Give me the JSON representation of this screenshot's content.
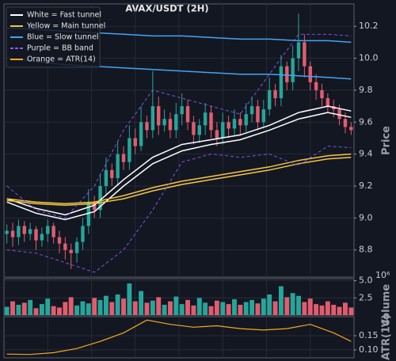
{
  "chart_data": [
    {
      "type": "candlestick",
      "title": "AVAX/USDT (2H)",
      "ylabel": "Price",
      "up_color": "#26a69a",
      "down_color": "#e05d6f",
      "grid": true,
      "xlim": [
        -0.5,
        59.5
      ],
      "ylim": [
        8.63,
        10.34
      ],
      "yticks": [
        8.8,
        {
          "value": 9,
          "label": "9.0"
        },
        9.2,
        9.4,
        9.6,
        9.8,
        {
          "value": 10,
          "label": "10.0"
        },
        10.2
      ],
      "open": [
        8.9,
        8.92,
        8.88,
        8.95,
        8.9,
        8.93,
        8.86,
        8.9,
        8.95,
        8.88,
        8.84,
        8.8,
        8.78,
        8.85,
        8.95,
        9.1,
        9.05,
        9.2,
        9.3,
        9.25,
        9.4,
        9.35,
        9.5,
        9.45,
        9.6,
        9.55,
        9.7,
        9.58,
        9.62,
        9.55,
        9.65,
        9.7,
        9.6,
        9.52,
        9.58,
        9.66,
        9.55,
        9.5,
        9.6,
        9.56,
        9.62,
        9.58,
        9.65,
        9.7,
        9.6,
        9.68,
        9.8,
        9.75,
        9.95,
        9.85,
        10.0,
        10.1,
        9.95,
        9.85,
        9.8,
        9.75,
        9.7,
        9.68,
        9.62,
        9.57
      ],
      "high": [
        8.96,
        8.97,
        8.99,
        8.98,
        8.97,
        8.95,
        8.94,
        8.99,
        8.97,
        8.92,
        8.88,
        8.84,
        8.88,
        9.0,
        9.18,
        9.14,
        9.28,
        9.38,
        9.34,
        9.48,
        9.45,
        9.58,
        9.56,
        9.7,
        9.64,
        9.92,
        9.76,
        9.68,
        9.66,
        9.72,
        9.78,
        9.74,
        9.64,
        9.62,
        9.72,
        9.7,
        9.6,
        9.66,
        9.64,
        9.68,
        9.66,
        9.72,
        9.76,
        9.74,
        9.74,
        9.88,
        9.84,
        10.02,
        9.98,
        10.08,
        10.28,
        10.15,
        9.98,
        9.9,
        9.84,
        9.78,
        9.74,
        9.71,
        9.66,
        9.6
      ],
      "low": [
        8.84,
        8.82,
        8.83,
        8.85,
        8.86,
        8.8,
        8.82,
        8.85,
        8.84,
        8.78,
        8.74,
        8.68,
        8.72,
        8.8,
        8.9,
        9.0,
        9.0,
        9.14,
        9.2,
        9.2,
        9.3,
        9.3,
        9.4,
        9.42,
        9.5,
        9.5,
        9.52,
        9.54,
        9.5,
        9.5,
        9.58,
        9.55,
        9.46,
        9.47,
        9.52,
        9.5,
        9.45,
        9.46,
        9.5,
        9.52,
        9.52,
        9.54,
        9.6,
        9.55,
        9.56,
        9.64,
        9.7,
        9.7,
        9.8,
        9.8,
        9.92,
        9.88,
        9.8,
        9.74,
        9.7,
        9.66,
        9.63,
        9.58,
        9.53,
        9.52
      ],
      "close": [
        8.92,
        8.88,
        8.95,
        8.9,
        8.93,
        8.86,
        8.9,
        8.95,
        8.88,
        8.84,
        8.8,
        8.78,
        8.85,
        8.95,
        9.1,
        9.05,
        9.2,
        9.3,
        9.25,
        9.4,
        9.35,
        9.5,
        9.45,
        9.6,
        9.55,
        9.7,
        9.58,
        9.62,
        9.55,
        9.65,
        9.7,
        9.6,
        9.52,
        9.58,
        9.66,
        9.55,
        9.5,
        9.6,
        9.56,
        9.62,
        9.58,
        9.65,
        9.7,
        9.6,
        9.68,
        9.8,
        9.75,
        9.95,
        9.85,
        10.0,
        10.1,
        9.95,
        9.85,
        9.8,
        9.75,
        9.7,
        9.68,
        9.62,
        9.57,
        9.55
      ],
      "legend": "upper left",
      "series": [
        {
          "name": "White = Fast tunnel",
          "color": "#ffffff",
          "lines": [
            {
              "x": [
                0,
                5,
                10,
                15,
                20,
                25,
                30,
                35,
                40,
                45,
                50,
                55,
                59
              ],
              "values": [
                9.12,
                9.06,
                9.02,
                9.08,
                9.24,
                9.38,
                9.46,
                9.49,
                9.52,
                9.58,
                9.66,
                9.7,
                9.67
              ]
            },
            {
              "x": [
                0,
                5,
                10,
                15,
                20,
                25,
                30,
                35,
                40,
                45,
                50,
                55,
                59
              ],
              "values": [
                9.1,
                9.03,
                8.99,
                9.04,
                9.2,
                9.34,
                9.42,
                9.46,
                9.49,
                9.55,
                9.62,
                9.66,
                9.63
              ]
            }
          ]
        },
        {
          "name": "Yellow = Main tunnel",
          "color": "#f5c542",
          "lines": [
            {
              "x": [
                0,
                5,
                10,
                15,
                20,
                25,
                30,
                35,
                40,
                45,
                50,
                55,
                59
              ],
              "values": [
                9.12,
                9.1,
                9.09,
                9.1,
                9.14,
                9.19,
                9.23,
                9.26,
                9.29,
                9.32,
                9.36,
                9.39,
                9.4
              ]
            },
            {
              "x": [
                0,
                5,
                10,
                15,
                20,
                25,
                30,
                35,
                40,
                45,
                50,
                55,
                59
              ],
              "values": [
                9.11,
                9.09,
                9.08,
                9.09,
                9.12,
                9.17,
                9.21,
                9.24,
                9.27,
                9.3,
                9.34,
                9.37,
                9.38
              ]
            }
          ]
        },
        {
          "name": "Blue = Slow tunnel",
          "color": "#42a5f5",
          "lines": [
            {
              "x": [
                0,
                5,
                10,
                15,
                20,
                25,
                30,
                35,
                40,
                45,
                50,
                55,
                59
              ],
              "values": [
                10.19,
                10.18,
                10.17,
                10.16,
                10.15,
                10.14,
                10.14,
                10.13,
                10.12,
                10.12,
                10.11,
                10.11,
                10.1
              ]
            },
            {
              "x": [
                0,
                5,
                10,
                15,
                20,
                25,
                30,
                35,
                40,
                45,
                50,
                55,
                59
              ],
              "values": [
                10.0,
                9.98,
                9.96,
                9.95,
                9.94,
                9.93,
                9.92,
                9.91,
                9.9,
                9.9,
                9.89,
                9.88,
                9.87
              ]
            }
          ]
        },
        {
          "name": "Purple = BB band",
          "color": "#8a5cf0",
          "dashed": true,
          "lines": [
            {
              "x": [
                0,
                5,
                10,
                15,
                20,
                25,
                30,
                35,
                40,
                45,
                50,
                55,
                59
              ],
              "values": [
                9.2,
                9.05,
                9.0,
                9.2,
                9.55,
                9.8,
                9.75,
                9.7,
                9.65,
                9.9,
                10.15,
                10.15,
                10.14
              ]
            },
            {
              "x": [
                0,
                5,
                10,
                15,
                20,
                25,
                30,
                35,
                40,
                45,
                50,
                55,
                59
              ],
              "values": [
                8.8,
                8.78,
                8.72,
                8.66,
                8.8,
                9.05,
                9.35,
                9.4,
                9.38,
                9.4,
                9.33,
                9.45,
                9.44
              ]
            }
          ]
        }
      ]
    },
    {
      "type": "volume",
      "ylabel": "Volume",
      "offset_text": "10⁶",
      "grid": true,
      "xlim": [
        -0.5,
        59.5
      ],
      "ylim": [
        0,
        5.3
      ],
      "yticks": [
        2.5,
        {
          "value": 5,
          "label": "5.0"
        }
      ],
      "values": [
        1.2,
        2.0,
        1.5,
        1.8,
        2.2,
        1.0,
        1.6,
        2.4,
        1.3,
        1.1,
        1.9,
        2.6,
        1.4,
        2.0,
        1.7,
        2.5,
        2.2,
        2.8,
        1.9,
        3.0,
        2.4,
        4.6,
        2.0,
        3.5,
        1.8,
        2.1,
        2.6,
        1.5,
        2.0,
        2.7,
        1.6,
        2.2,
        1.4,
        2.5,
        1.8,
        1.3,
        2.1,
        1.9,
        1.6,
        2.3,
        1.5,
        1.9,
        2.2,
        1.7,
        2.4,
        3.0,
        2.0,
        4.2,
        2.6,
        3.2,
        2.8,
        1.9,
        2.4,
        1.6,
        1.4,
        2.0,
        1.5,
        1.2,
        1.8,
        1.1
      ]
    },
    {
      "type": "line",
      "ylabel": "ATR(14)",
      "grid": true,
      "xlim": [
        -0.5,
        59.5
      ],
      "ylim": [
        0.072,
        0.217
      ],
      "yticks": [
        {
          "value": 0.1,
          "label": "0.10"
        },
        0.15
      ],
      "series": [
        {
          "name": "Orange = ATR(14)",
          "color": "#f5a623",
          "x": [
            0,
            4,
            8,
            12,
            16,
            20,
            24,
            28,
            32,
            36,
            40,
            44,
            48,
            52,
            56,
            59
          ],
          "values": [
            0.085,
            0.084,
            0.09,
            0.105,
            0.13,
            0.16,
            0.205,
            0.19,
            0.18,
            0.185,
            0.175,
            0.17,
            0.175,
            0.19,
            0.16,
            0.13
          ]
        }
      ]
    }
  ]
}
